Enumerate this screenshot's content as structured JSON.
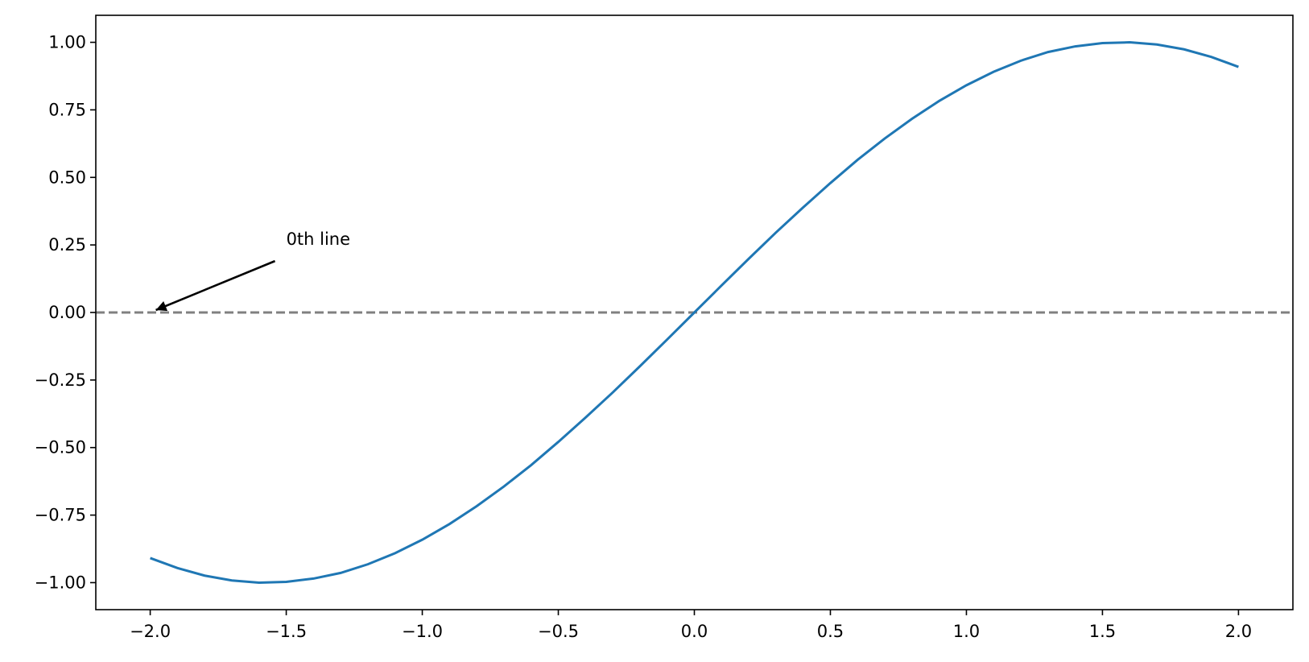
{
  "chart_data": {
    "type": "line",
    "x": [
      -2.0,
      -1.9,
      -1.8,
      -1.7,
      -1.6,
      -1.5,
      -1.4,
      -1.3,
      -1.2,
      -1.1,
      -1.0,
      -0.9,
      -0.8,
      -0.7,
      -0.6,
      -0.5,
      -0.4,
      -0.3,
      -0.2,
      -0.1,
      0.0,
      0.1,
      0.2,
      0.3,
      0.4,
      0.5,
      0.6,
      0.7,
      0.8,
      0.9,
      1.0,
      1.1,
      1.2,
      1.3,
      1.4,
      1.5,
      1.6,
      1.7,
      1.8,
      1.9,
      2.0
    ],
    "series": [
      {
        "color": "#1f77b4",
        "values": [
          -0.909,
          -0.946,
          -0.974,
          -0.992,
          -1.0,
          -0.997,
          -0.985,
          -0.964,
          -0.932,
          -0.891,
          -0.841,
          -0.783,
          -0.717,
          -0.644,
          -0.565,
          -0.479,
          -0.389,
          -0.296,
          -0.199,
          -0.1,
          0.0,
          0.1,
          0.199,
          0.296,
          0.389,
          0.479,
          0.565,
          0.644,
          0.717,
          0.783,
          0.841,
          0.891,
          0.932,
          0.964,
          0.985,
          0.997,
          1.0,
          0.992,
          0.974,
          0.946,
          0.909
        ]
      }
    ],
    "xlim": [
      -2.2,
      2.2
    ],
    "ylim": [
      -1.1,
      1.1
    ],
    "xticks": [
      {
        "value": -2.0,
        "label": "−2.0"
      },
      {
        "value": -1.5,
        "label": "−1.5"
      },
      {
        "value": -1.0,
        "label": "−1.0"
      },
      {
        "value": -0.5,
        "label": "−0.5"
      },
      {
        "value": 0.0,
        "label": "0.0"
      },
      0.5,
      {
        "value": 1.0,
        "label": "1.0"
      },
      1.5,
      {
        "value": 2.0,
        "label": "2.0"
      }
    ],
    "yticks": [
      {
        "value": -1.0,
        "label": "−1.00"
      },
      {
        "value": -0.75,
        "label": "−0.75"
      },
      {
        "value": -0.5,
        "label": "−0.50"
      },
      {
        "value": -0.25,
        "label": "−0.25"
      },
      {
        "value": 0.0,
        "label": "0.00"
      },
      0.25,
      {
        "value": 0.5,
        "label": "0.50"
      },
      0.75,
      {
        "value": 1.0,
        "label": "1.00"
      }
    ],
    "hlines": [
      {
        "y": 0,
        "color": "#808080",
        "style": "dashed"
      }
    ],
    "annotations": [
      {
        "text": "0th line",
        "xy": [
          -2.0,
          0.0
        ],
        "xytext": [
          -1.5,
          0.25
        ]
      }
    ]
  }
}
